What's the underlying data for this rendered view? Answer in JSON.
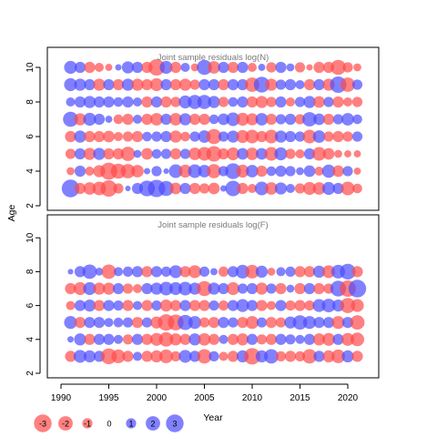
{
  "chart_data": [
    {
      "type": "scatter",
      "title": "Joint sample residuals log(N)",
      "ylabel": "Age",
      "xlim": [
        1991,
        2021
      ],
      "ylim": [
        2,
        10.8
      ],
      "yticks": [
        2,
        4,
        6,
        8,
        10
      ],
      "ages": [
        3,
        4,
        5,
        6,
        7,
        8,
        9,
        10
      ],
      "years": [
        1991,
        1992,
        1993,
        1994,
        1995,
        1996,
        1997,
        1998,
        1999,
        2000,
        2001,
        2002,
        2003,
        2004,
        2005,
        2006,
        2007,
        2008,
        2009,
        2010,
        2011,
        2012,
        2013,
        2014,
        2015,
        2016,
        2017,
        2018,
        2019,
        2020,
        2021
      ],
      "residuals": {
        "3": [
          3.0,
          -1.2,
          -1.5,
          -1.8,
          -2.6,
          -1.0,
          0.3,
          1.2,
          2.4,
          2.9,
          2.2,
          -1.3,
          1.2,
          -1.2,
          -1.0,
          -1.3,
          0.4,
          2.3,
          -1.2,
          -0.8,
          1.8,
          -1.5,
          1.4,
          0.8,
          -1.0,
          -1.6,
          -1.5,
          1.6,
          1.2,
          -1.8,
          -0.9
        ],
        "4": [
          -0.6,
          1.2,
          -0.8,
          -1.4,
          -2.8,
          -2.2,
          -2.0,
          -1.5,
          0.4,
          1.0,
          0.3,
          1.8,
          -1.6,
          1.8,
          1.5,
          -1.9,
          1.0,
          2.4,
          -1.6,
          1.5,
          -1.2,
          0.9,
          1.2,
          1.0,
          0.6,
          1.3,
          -0.8,
          1.7,
          -1.3,
          1.0,
          -0.5
        ],
        "5": [
          -1.0,
          1.2,
          -1.4,
          1.4,
          -1.2,
          -1.2,
          -2.0,
          0.6,
          -1.3,
          0.9,
          1.0,
          -1.2,
          1.0,
          -1.5,
          -1.8,
          -2.3,
          -1.2,
          -1.6,
          1.3,
          -1.5,
          1.3,
          -1.8,
          1.6,
          -1.0,
          -0.8,
          1.2,
          -1.8,
          -1.3,
          -0.6,
          -0.5,
          -0.5
        ],
        "6": [
          -1.2,
          1.4,
          -1.2,
          -1.2,
          -1.3,
          -0.8,
          -1.0,
          -1.2,
          0.9,
          1.0,
          1.2,
          -1.4,
          -0.9,
          1.0,
          1.5,
          -2.2,
          1.0,
          1.4,
          -1.6,
          -1.8,
          -1.2,
          -1.8,
          1.4,
          1.2,
          1.0,
          -1.8,
          1.5,
          -1.0,
          -1.2,
          -1.0,
          1.0
        ],
        "7": [
          2.2,
          -1.4,
          1.6,
          1.2,
          0.5,
          -0.9,
          -1.2,
          0.8,
          -1.2,
          -1.5,
          1.2,
          -1.5,
          1.4,
          -1.2,
          -1.2,
          0.9,
          1.3,
          1.8,
          -1.6,
          -1.4,
          1.5,
          -1.2,
          1.0,
          1.2,
          -1.0,
          2.0,
          1.3,
          -1.2,
          1.0,
          1.5,
          0.9
        ],
        "8": [
          0.8,
          1.2,
          1.4,
          1.2,
          1.2,
          0.9,
          1.2,
          0.8,
          -1.2,
          1.2,
          -1.2,
          -1.0,
          1.6,
          1.9,
          1.9,
          1.4,
          -1.0,
          0.9,
          1.2,
          -1.2,
          -1.4,
          -1.0,
          1.2,
          -0.8,
          1.0,
          1.4,
          -1.3,
          1.0,
          -1.2,
          -0.8,
          -1.0
        ],
        "9": [
          1.6,
          1.4,
          1.2,
          -1.4,
          1.2,
          -1.2,
          1.4,
          -1.4,
          -1.2,
          -1.6,
          1.2,
          -1.2,
          -1.4,
          -1.0,
          1.2,
          1.2,
          -1.2,
          1.2,
          1.2,
          -2.0,
          2.4,
          -1.4,
          1.0,
          1.2,
          0.8,
          -1.2,
          1.2,
          -1.4,
          2.6,
          -2.0,
          1.0
        ],
        "10": [
          1.6,
          1.2,
          -1.2,
          -0.8,
          -0.5,
          0.4,
          1.4,
          1.2,
          -1.2,
          -2.6,
          1.6,
          -1.2,
          0.8,
          -0.6,
          2.2,
          -1.5,
          1.2,
          -1.2,
          1.2,
          -0.8,
          0.5,
          -1.0,
          1.2,
          0.6,
          -1.0,
          -0.4,
          -1.2,
          -1.2,
          -2.2,
          -1.0,
          -0.6
        ]
      }
    },
    {
      "type": "scatter",
      "title": "Joint sample residuals log(F)",
      "ylabel": "",
      "xlabel": "Year",
      "xlim": [
        1991,
        2021
      ],
      "ylim": [
        2,
        10.8
      ],
      "xticks": [
        1990,
        1995,
        2000,
        2005,
        2010,
        2015,
        2020
      ],
      "yticks": [
        2,
        4,
        6,
        8,
        10
      ],
      "ages": [
        3,
        4,
        5,
        6,
        7,
        8
      ],
      "years": [
        1991,
        1992,
        1993,
        1994,
        1995,
        1996,
        1997,
        1998,
        1999,
        2000,
        2001,
        2002,
        2003,
        2004,
        2005,
        2006,
        2007,
        2008,
        2009,
        2010,
        2011,
        2012,
        2013,
        2014,
        2015,
        2016,
        2017,
        2018,
        2019,
        2020,
        2021
      ],
      "residuals": {
        "3": [
          -1.2,
          1.6,
          1.4,
          1.2,
          -2.4,
          -1.8,
          -1.2,
          0.8,
          -1.2,
          -1.4,
          -1.8,
          -1.0,
          1.6,
          1.2,
          -2.0,
          1.0,
          -0.8,
          -1.2,
          1.4,
          -2.6,
          1.4,
          2.0,
          -1.0,
          -1.2,
          -1.0,
          -2.0,
          1.2,
          -1.4,
          -1.8,
          1.4,
          -1.2
        ],
        "4": [
          0.4,
          1.4,
          -1.2,
          1.2,
          1.2,
          0.8,
          -1.0,
          1.2,
          -1.2,
          -1.6,
          -2.0,
          -1.4,
          -1.2,
          1.4,
          -1.5,
          -1.2,
          0.8,
          -1.2,
          -1.4,
          1.2,
          -1.0,
          -1.2,
          1.2,
          1.0,
          0.8,
          1.2,
          -1.4,
          -1.6,
          1.2,
          -1.6,
          -1.8
        ],
        "5": [
          1.6,
          -1.2,
          1.2,
          1.2,
          0.8,
          0.9,
          1.0,
          -1.2,
          1.0,
          -1.4,
          -2.6,
          -2.4,
          2.2,
          1.6,
          -1.0,
          -1.2,
          1.2,
          1.0,
          -1.2,
          -1.6,
          1.0,
          -1.2,
          -1.0,
          1.4,
          2.0,
          1.6,
          1.2,
          1.2,
          -1.6,
          1.2,
          -2.0
        ],
        "6": [
          -0.8,
          1.2,
          1.4,
          -1.2,
          1.2,
          1.0,
          -1.2,
          0.8,
          -1.2,
          1.0,
          -1.4,
          -1.2,
          1.2,
          -1.2,
          -1.2,
          1.0,
          -1.0,
          1.2,
          1.6,
          1.2,
          -1.2,
          -0.8,
          1.2,
          -1.0,
          -1.2,
          -1.0,
          1.6,
          1.8,
          1.4,
          -2.2,
          -1.6
        ],
        "7": [
          -1.2,
          -1.6,
          1.6,
          -1.4,
          -1.4,
          1.2,
          -1.0,
          -0.8,
          1.2,
          1.4,
          1.8,
          1.6,
          1.8,
          1.4,
          -2.2,
          1.4,
          1.2,
          -1.6,
          1.0,
          1.2,
          -1.4,
          1.0,
          -1.2,
          0.6,
          -1.2,
          1.2,
          -1.2,
          -1.0,
          2.4,
          -2.6,
          3.0
        ],
        "8": [
          0.3,
          1.2,
          2.0,
          0.6,
          -2.0,
          0.8,
          1.0,
          1.2,
          -1.2,
          1.2,
          1.0,
          1.6,
          -1.2,
          -1.6,
          1.0,
          0.5,
          -1.0,
          1.2,
          1.8,
          -1.8,
          1.4,
          -0.6,
          0.8,
          1.0,
          -1.2,
          -1.2,
          1.4,
          -1.6,
          1.8,
          2.4,
          -1.2
        ]
      }
    }
  ],
  "legend": {
    "values": [
      -3,
      -2,
      -1,
      0,
      1,
      2,
      3
    ],
    "labels": [
      "-3",
      "-2",
      "-1",
      "0",
      "1",
      "2",
      "3"
    ]
  },
  "colors": {
    "negative": "#ff4a4a",
    "positive": "#4b4bff",
    "title": "#7a7a7a",
    "bubble_opacity": 0.7
  },
  "panels": {
    "top_title": "Joint sample residuals log(N)",
    "bottom_title": "Joint sample residuals log(F)",
    "y_axis_title": "Age",
    "x_axis_title": "Year"
  }
}
